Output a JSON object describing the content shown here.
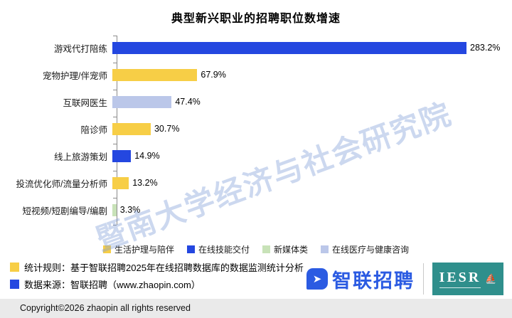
{
  "title": "典型新兴职业的招聘职位数增速",
  "watermark": "暨南大学经济与社会研究院",
  "chart_data": {
    "type": "bar",
    "orientation": "horizontal",
    "title": "典型新兴职业的招聘职位数增速",
    "xlabel": "",
    "ylabel": "",
    "xlim": [
      0,
      290
    ],
    "max_value": 283.2,
    "grid": false,
    "legend_position": "bottom",
    "rows": [
      {
        "category": "游戏代打陪练",
        "value": 283.2,
        "label": "283.2%",
        "series": "在线技能交付",
        "color": "#2447E0"
      },
      {
        "category": "宠物护理/伴宠师",
        "value": 67.9,
        "label": "67.9%",
        "series": "生活护理与陪伴",
        "color": "#F7CE46"
      },
      {
        "category": "互联网医生",
        "value": 47.4,
        "label": "47.4%",
        "series": "在线医疗与健康咨询",
        "color": "#BBC7E9"
      },
      {
        "category": "陪诊师",
        "value": 30.7,
        "label": "30.7%",
        "series": "生活护理与陪伴",
        "color": "#F7CE46"
      },
      {
        "category": "线上旅游策划",
        "value": 14.9,
        "label": "14.9%",
        "series": "在线技能交付",
        "color": "#2447E0"
      },
      {
        "category": "投流优化师/流量分析师",
        "value": 13.2,
        "label": "13.2%",
        "series": "生活护理与陪伴",
        "color": "#F7CE46"
      },
      {
        "category": "短视频/短剧编导/编剧",
        "value": 3.3,
        "label": "3.3%",
        "series": "新媒体类",
        "color": "#C8E2B8"
      }
    ],
    "legend": [
      {
        "label": "生活护理与陪伴",
        "color": "#F7CE46"
      },
      {
        "label": "在线技能交付",
        "color": "#2447E0"
      },
      {
        "label": "新媒体类",
        "color": "#C8E2B8"
      },
      {
        "label": "在线医疗与健康咨询",
        "color": "#BBC7E9"
      }
    ]
  },
  "notes": [
    {
      "bullet_color": "#F7CE46",
      "text": "统计规则：基于智联招聘2025年在线招聘数据库的数据监测统计分析"
    },
    {
      "bullet_color": "#2447E0",
      "text": "数据来源：智联招聘（www.zhaopin.com）"
    }
  ],
  "branding": {
    "zhaopin_text": "智联招聘",
    "iesr_text": "IESR"
  },
  "footer": {
    "copyright": "Copyright©2026 zhaopin all rights reserved"
  }
}
